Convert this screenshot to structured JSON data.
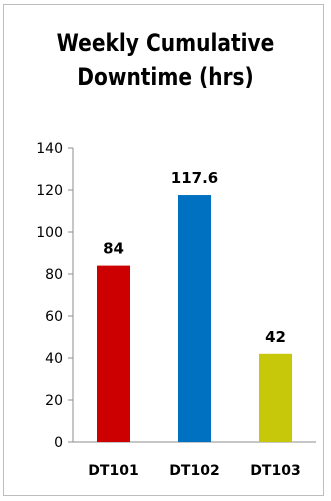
{
  "chart_data": {
    "type": "bar",
    "title_lines": [
      "Weekly Cumulative",
      "Downtime (hrs)"
    ],
    "categories": [
      "DT101",
      "DT102",
      "DT103"
    ],
    "values": [
      84,
      117.6,
      42
    ],
    "data_labels": [
      "84",
      "117.6",
      "42"
    ],
    "bar_colors": [
      "#cc0000",
      "#0070c0",
      "#c8c80a"
    ],
    "ylim": [
      0,
      140
    ],
    "yticks": [
      0,
      20,
      40,
      60,
      80,
      100,
      120,
      140
    ],
    "xlabel": "",
    "ylabel": "",
    "grid": false,
    "legend": "none"
  }
}
